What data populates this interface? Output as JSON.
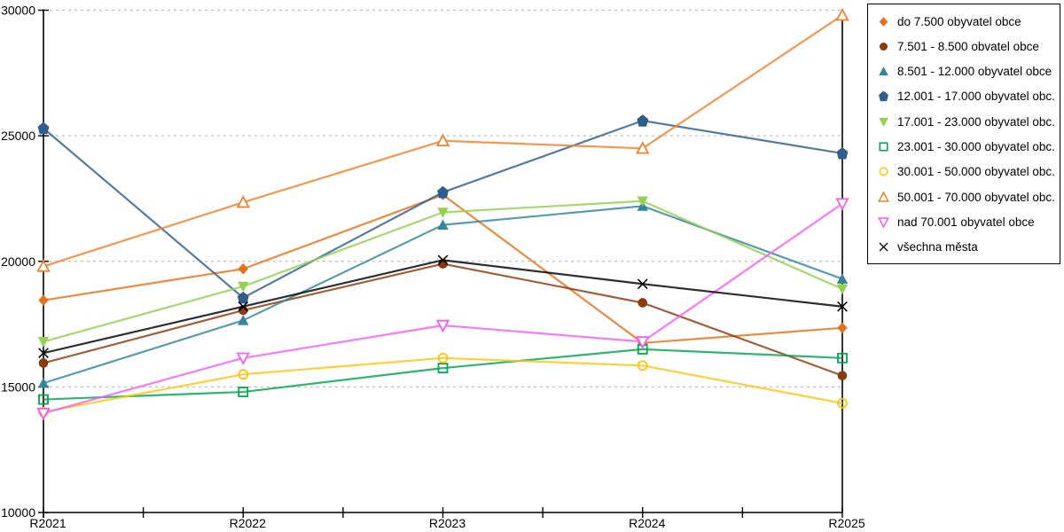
{
  "chart_data": {
    "type": "line",
    "title": "",
    "xlabel": "",
    "ylabel": "",
    "x_categories": [
      "R2021",
      "R2022",
      "R2023",
      "R2024",
      "R2025"
    ],
    "ylim": [
      10000,
      30000
    ],
    "yticks": [
      10000,
      15000,
      20000,
      25000,
      30000
    ],
    "ytick_labels": [
      "10000",
      "15000",
      "20000",
      "25000",
      "30000"
    ],
    "grid": "horizontal dashed gridlines at 15000, 20000, 25000, 30000",
    "legend_position": "outside-top-right",
    "axis_color": "#000000",
    "gridline_color": "#bfbfbf",
    "series": [
      {
        "name": "do 7.500 obyvatel obce",
        "marker": "diamond-filled",
        "color": "#e5701a",
        "values": [
          18450,
          19700,
          22650,
          16750,
          17350
        ]
      },
      {
        "name": "7.501 - 8.500 obvatel obce",
        "marker": "circle-filled",
        "color": "#8b3a0d",
        "values": [
          15950,
          18050,
          19900,
          18350,
          15450
        ]
      },
      {
        "name": "8.501 - 12.000 obyvatel obce",
        "marker": "triangle-up-filled",
        "color": "#31859c",
        "values": [
          15150,
          17650,
          21450,
          22200,
          19300
        ]
      },
      {
        "name": "12.001 - 17.000 obyvatel obc...",
        "marker": "pentagon-filled",
        "color": "#2f5d8c",
        "values": [
          25300,
          18550,
          22750,
          25600,
          24300
        ]
      },
      {
        "name": "17.001 - 23.000 obyvatel obc...",
        "marker": "triangle-down-filled",
        "color": "#92d050",
        "values": [
          16800,
          19000,
          21950,
          22400,
          18900
        ]
      },
      {
        "name": "23.001 - 30.000 obyvatel obc...",
        "marker": "square-open",
        "color": "#00a550",
        "values": [
          14500,
          14800,
          15750,
          16500,
          16150
        ]
      },
      {
        "name": "30.001 - 50.000 obyvatel obc...",
        "marker": "circle-open",
        "color": "#fcc40c",
        "values": [
          14000,
          15500,
          16150,
          15850,
          14350
        ]
      },
      {
        "name": "50.001 - 70.000 obyvatel obc...",
        "marker": "triangle-up-open",
        "color": "#f0802a",
        "values": [
          19800,
          22350,
          24800,
          24500,
          29800
        ]
      },
      {
        "name": "nad 70.001 obyvatel obce",
        "marker": "triangle-down-open",
        "color": "#f55cf5",
        "values": [
          13950,
          16150,
          17450,
          16800,
          22300
        ]
      },
      {
        "name": "všechna města",
        "marker": "x",
        "color": "#000000",
        "values": [
          16350,
          18200,
          20050,
          19100,
          18200
        ]
      }
    ]
  }
}
